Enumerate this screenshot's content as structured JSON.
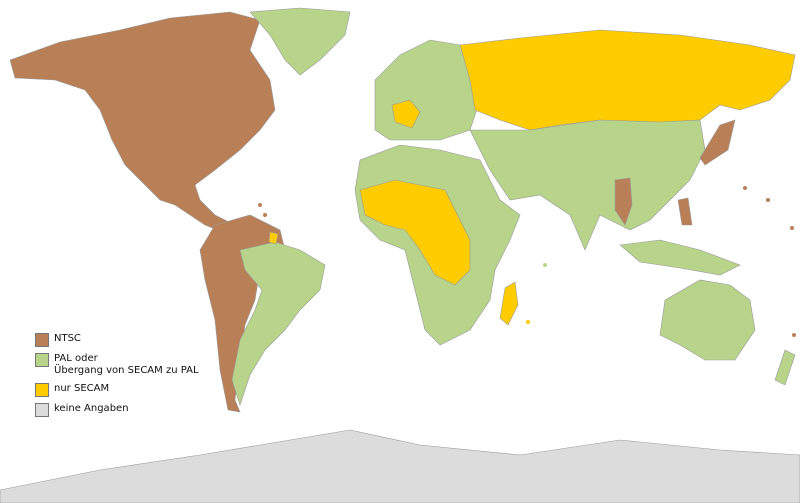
{
  "legend": [
    {
      "key": "ntsc",
      "label": "NTSC",
      "label2": "",
      "color": "#b98058"
    },
    {
      "key": "pal",
      "label": "PAL oder",
      "label2": "Übergang von SECAM zu PAL",
      "color": "#b7d48a"
    },
    {
      "key": "secam",
      "label": "nur SECAM",
      "label2": "",
      "color": "#ffcc00"
    },
    {
      "key": "none",
      "label": "keine Angaben",
      "label2": "",
      "color": "#dcdcdc"
    }
  ],
  "colors": {
    "border": "#9a9a9a",
    "ocean": "#ffffff"
  }
}
